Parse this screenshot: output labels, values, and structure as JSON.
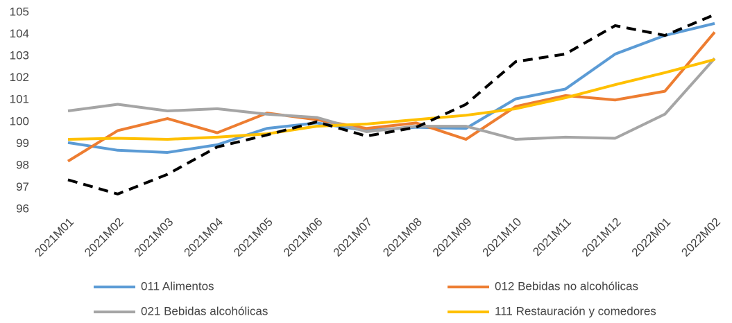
{
  "chart_data": {
    "type": "line",
    "categories": [
      "2021M01",
      "2021M02",
      "2021M03",
      "2021M04",
      "2021M05",
      "2021M06",
      "2021M07",
      "2021M08",
      "2021M09",
      "2021M10",
      "2021M11",
      "2021M12",
      "2022M01",
      "2022M02"
    ],
    "series": [
      {
        "name": "011 Alimentos",
        "color": "#5b9bd5",
        "values": [
          99.05,
          98.7,
          98.6,
          98.95,
          99.7,
          99.95,
          99.6,
          99.75,
          99.7,
          101.05,
          101.5,
          103.1,
          103.95,
          104.5
        ]
      },
      {
        "name": "012 Bebidas no alcohólicas",
        "color": "#ed7d31",
        "values": [
          98.2,
          99.6,
          100.15,
          99.5,
          100.4,
          100.1,
          99.7,
          99.95,
          99.2,
          100.7,
          101.2,
          101.0,
          101.4,
          104.1
        ]
      },
      {
        "name": "021 Bebidas alcohólicas",
        "color": "#a5a5a5",
        "values": [
          100.5,
          100.8,
          100.5,
          100.6,
          100.35,
          100.2,
          99.55,
          99.8,
          99.8,
          99.2,
          99.3,
          99.25,
          100.35,
          102.9
        ]
      },
      {
        "name": "111 Restauración y comedores",
        "color": "#ffc000",
        "values": [
          99.2,
          99.25,
          99.2,
          99.3,
          99.45,
          99.8,
          99.9,
          100.1,
          100.3,
          100.6,
          101.1,
          101.7,
          102.25,
          102.85
        ]
      },
      {
        "color": "#000000",
        "dashed": true,
        "values": [
          97.35,
          96.7,
          97.6,
          98.85,
          99.4,
          100.0,
          99.35,
          99.75,
          100.8,
          102.75,
          103.1,
          104.4,
          103.95,
          104.9
        ]
      }
    ],
    "ylim": [
      96,
      105
    ],
    "yticks": [
      96,
      97,
      98,
      99,
      100,
      101,
      102,
      103,
      104,
      105
    ],
    "grid": false
  }
}
